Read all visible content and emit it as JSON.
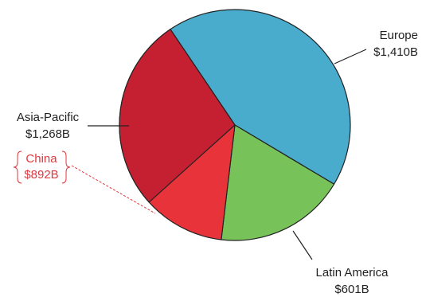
{
  "chart_data": {
    "type": "pie",
    "categories": [
      "Europe",
      "Latin America",
      "Asia-Pacific"
    ],
    "values": [
      1410,
      601,
      1268
    ],
    "value_labels": [
      "$1,410B",
      "$601B",
      "$1,268B"
    ],
    "colors": [
      "#4aaccc",
      "#77c35a",
      "#e8333a"
    ],
    "inset": {
      "name": "China",
      "value": 892,
      "value_label": "$892B",
      "of": "Asia-Pacific",
      "color": "#c42032"
    }
  }
}
